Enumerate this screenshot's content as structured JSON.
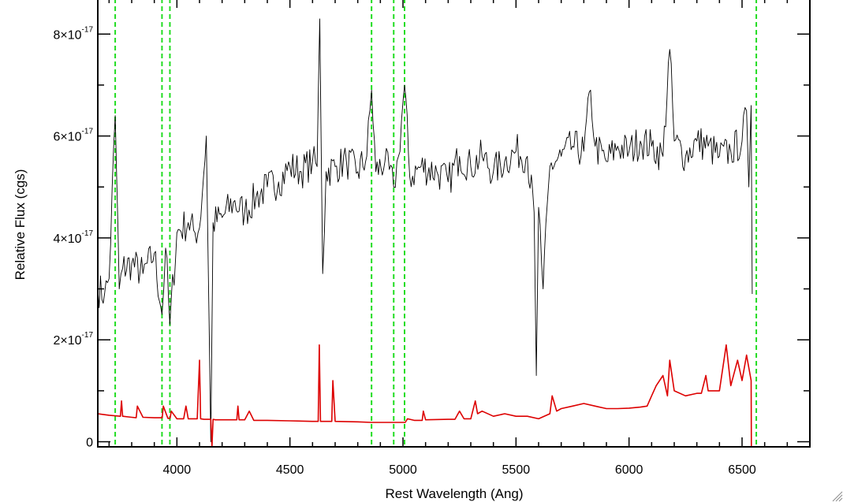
{
  "chart_data": {
    "type": "line",
    "title": "",
    "xlabel": "Rest Wavelength (Ang)",
    "ylabel": "Relative Flux (cgs)",
    "xlim": [
      3650,
      6800
    ],
    "ylim": [
      -1e-18,
      8.7e-17
    ],
    "x_ticks": [
      4000,
      4500,
      5000,
      5500,
      6000,
      6500
    ],
    "x_tick_labels": [
      "4000",
      "4500",
      "5000",
      "5500",
      "6000",
      "6500"
    ],
    "y_ticks": [
      0,
      2e-17,
      4e-17,
      6e-17,
      8e-17
    ],
    "y_tick_labels": [
      {
        "mantissa": "0",
        "exponent": ""
      },
      {
        "mantissa": "2×10",
        "exponent": "-17"
      },
      {
        "mantissa": "4×10",
        "exponent": "-17"
      },
      {
        "mantissa": "6×10",
        "exponent": "-17"
      },
      {
        "mantissa": "8×10",
        "exponent": "-17"
      }
    ],
    "grid": false,
    "vertical_markers": {
      "style": "dashed",
      "color": "#22dd22",
      "x": [
        3727,
        3934,
        3969,
        4861,
        4959,
        5007,
        6563
      ]
    },
    "series": [
      {
        "color": "#000000",
        "x": [
          3650,
          3680,
          3700,
          3727,
          3745,
          3760,
          3800,
          3850,
          3900,
          3934,
          3950,
          3969,
          4000,
          4050,
          4080,
          4100,
          4130,
          4150,
          4160,
          4200,
          4250,
          4300,
          4350,
          4400,
          4450,
          4500,
          4550,
          4600,
          4620,
          4632,
          4645,
          4660,
          4700,
          4750,
          4800,
          4840,
          4861,
          4880,
          4920,
          4959,
          4980,
          5007,
          5030,
          5080,
          5150,
          5200,
          5250,
          5300,
          5350,
          5400,
          5450,
          5500,
          5550,
          5580,
          5590,
          5600,
          5620,
          5650,
          5700,
          5750,
          5800,
          5830,
          5850,
          5900,
          5950,
          6000,
          6050,
          6100,
          6150,
          6180,
          6200,
          6250,
          6300,
          6350,
          6400,
          6450,
          6500,
          6520,
          6530,
          6540,
          6545
        ],
        "y": [
          3e-17,
          2.9e-17,
          3.2e-17,
          6.4e-17,
          3e-17,
          3.4e-17,
          3.5e-17,
          3.3e-17,
          3.7e-17,
          2.5e-17,
          3.8e-17,
          2.3e-17,
          4.1e-17,
          4.3e-17,
          4.1e-17,
          4.2e-17,
          6e-17,
          0.0,
          4.3e-17,
          4.4e-17,
          4.7e-17,
          4.5e-17,
          4.8e-17,
          5e-17,
          5.1e-17,
          5.4e-17,
          5.3e-17,
          5.5e-17,
          5.4e-17,
          8.3e-17,
          3.3e-17,
          5.3e-17,
          5.4e-17,
          5.5e-17,
          5.3e-17,
          5.6e-17,
          6.9e-17,
          5.3e-17,
          5.5e-17,
          5e-17,
          5.6e-17,
          7e-17,
          5.2e-17,
          5.4e-17,
          5.3e-17,
          5.1e-17,
          5.6e-17,
          5.4e-17,
          5.6e-17,
          5.3e-17,
          5.5e-17,
          5.7e-17,
          5.6e-17,
          4.5e-17,
          1.3e-17,
          4.6e-17,
          3e-17,
          5.4e-17,
          5.6e-17,
          5.8e-17,
          5.7e-17,
          6.9e-17,
          5.8e-17,
          5.5e-17,
          5.8e-17,
          5.7e-17,
          5.9e-17,
          5.8e-17,
          5.6e-17,
          7.7e-17,
          5.9e-17,
          5.6e-17,
          5.9e-17,
          5.8e-17,
          5.6e-17,
          5.7e-17,
          5.9e-17,
          6.5e-17,
          5e-17,
          6.6e-17,
          2.9e-17
        ]
      },
      {
        "color": "#dd0000",
        "x": [
          3650,
          3700,
          3750,
          3755,
          3760,
          3800,
          3820,
          3825,
          3850,
          3900,
          3935,
          3940,
          3960,
          3970,
          3975,
          4000,
          4030,
          4040,
          4050,
          4090,
          4100,
          4105,
          4120,
          4150,
          4155,
          4160,
          4170,
          4200,
          4265,
          4270,
          4275,
          4300,
          4320,
          4340,
          4360,
          4400,
          4500,
          4600,
          4625,
          4630,
          4635,
          4660,
          4685,
          4690,
          4700,
          4800,
          4861,
          4900,
          5000,
          5010,
          5020,
          5050,
          5085,
          5090,
          5100,
          5200,
          5230,
          5250,
          5270,
          5300,
          5320,
          5330,
          5350,
          5400,
          5450,
          5500,
          5550,
          5600,
          5650,
          5660,
          5680,
          5700,
          5750,
          5800,
          5850,
          5900,
          5950,
          6000,
          6050,
          6080,
          6100,
          6120,
          6150,
          6170,
          6180,
          6200,
          6250,
          6300,
          6320,
          6340,
          6350,
          6400,
          6430,
          6450,
          6480,
          6500,
          6520,
          6540,
          6541,
          6550,
          6600,
          6700,
          6800
        ],
        "y": [
          5.5e-18,
          5.2e-18,
          5e-18,
          8e-18,
          5e-18,
          4.8e-18,
          4.7e-18,
          7e-18,
          4.8e-18,
          4.7e-18,
          4.7e-18,
          7e-18,
          4.6e-18,
          4.6e-18,
          6e-18,
          4.5e-18,
          4.5e-18,
          7e-18,
          4.5e-18,
          4.5e-18,
          1.6e-17,
          4.5e-18,
          4.4e-18,
          4.4e-18,
          -1e-18,
          4.4e-18,
          4.3e-18,
          4.3e-18,
          4.3e-18,
          7e-18,
          4.3e-18,
          4.3e-18,
          6e-18,
          4.2e-18,
          4.2e-18,
          4.2e-18,
          4.1e-18,
          4e-18,
          4e-18,
          1.9e-17,
          4e-18,
          4e-18,
          4e-18,
          1.2e-17,
          4e-18,
          3.9e-18,
          3.8e-18,
          3.8e-18,
          3.8e-18,
          3.8e-18,
          4.5e-18,
          4.2e-18,
          4.2e-18,
          6e-18,
          4.3e-18,
          4.4e-18,
          4.4e-18,
          6e-18,
          4.5e-18,
          4.5e-18,
          8e-18,
          5.5e-18,
          6e-18,
          5e-18,
          5.5e-18,
          5e-18,
          5e-18,
          4.5e-18,
          5.5e-18,
          9e-18,
          6e-18,
          6.5e-18,
          7e-18,
          7.5e-18,
          7e-18,
          6.5e-18,
          6.5e-18,
          6.6e-18,
          6.8e-18,
          7e-18,
          9e-18,
          1.1e-17,
          1.3e-17,
          9e-18,
          1.6e-17,
          1e-17,
          9e-18,
          9.5e-18,
          9.5e-18,
          1.3e-17,
          1e-17,
          1e-17,
          1.9e-17,
          1.1e-17,
          1.6e-17,
          1.2e-17,
          1.7e-17,
          1.2e-17,
          -1e-18,
          -1e-18,
          -1e-18,
          -1e-18,
          -1e-18
        ]
      }
    ]
  }
}
